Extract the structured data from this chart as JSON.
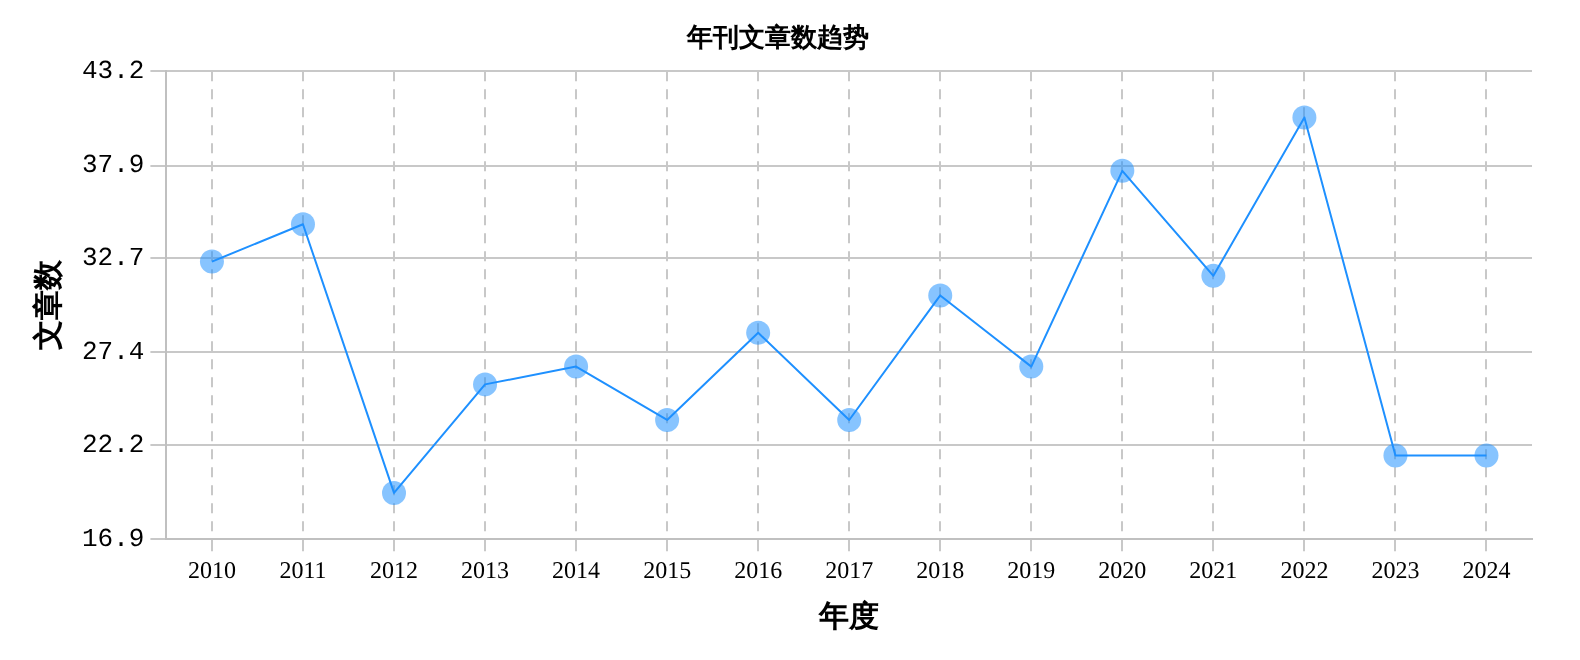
{
  "chart_data": {
    "type": "line",
    "title": "年刊文章数趋势",
    "xlabel": "年度",
    "ylabel": "文章数",
    "categories": [
      "2010",
      "2011",
      "2012",
      "2013",
      "2014",
      "2015",
      "2016",
      "2017",
      "2018",
      "2019",
      "2020",
      "2021",
      "2022",
      "2023",
      "2024"
    ],
    "series": [
      {
        "color": "#1e90ff",
        "values": [
          32.5,
          34.6,
          19.5,
          25.6,
          26.6,
          23.6,
          28.5,
          23.6,
          30.6,
          26.6,
          37.6,
          31.7,
          40.6,
          21.6,
          21.6
        ]
      }
    ],
    "ylim": [
      16.9,
      43.2
    ],
    "yticks": [
      16.9,
      22.2,
      27.4,
      32.7,
      37.9,
      43.2
    ],
    "grid": true,
    "legend": false,
    "marker": "circle",
    "line_style": "solid"
  }
}
